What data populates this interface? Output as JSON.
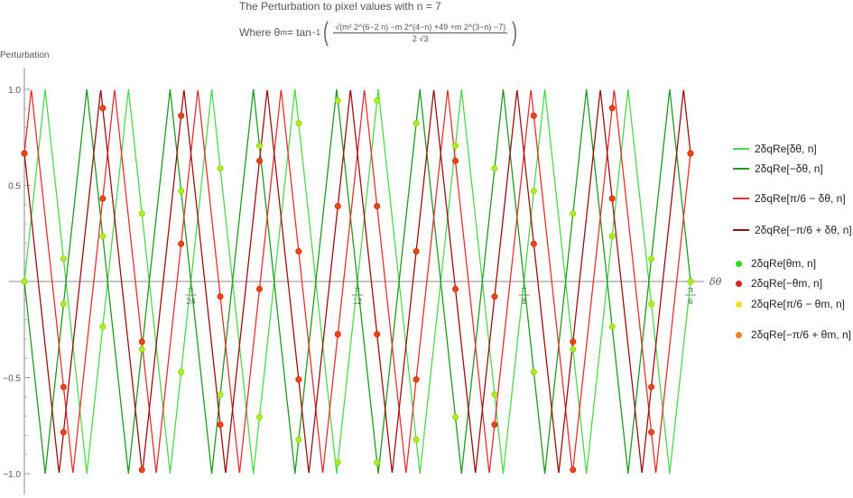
{
  "header": {
    "title": "The Perturbation to pixel values with n = 7",
    "formula_prefix": "Where θ",
    "formula_sub": "m",
    "formula_eq": " = tan",
    "formula_sup": "−1",
    "formula_numerator": "√(m² 2^(6−2 n) −m 2^(4−n) +49 +m 2^(3−n) −7)",
    "formula_denominator": "2 √3"
  },
  "chart_data": {
    "type": "line",
    "title": "The Perturbation to pixel values with n = 7",
    "xlabel": "δθ",
    "ylabel": "Perturbation",
    "xlim": [
      0,
      0.5236
    ],
    "ylim": [
      -1.0,
      1.0
    ],
    "yticks": [
      -1.0,
      -0.5,
      0.5,
      1.0
    ],
    "ytick_labels": [
      "−1.0",
      "−0.5",
      "0.5",
      "1.0"
    ],
    "xticks": [
      {
        "value": 0.1309,
        "num": "π",
        "den": "24"
      },
      {
        "value": 0.2618,
        "num": "π",
        "den": "12"
      },
      {
        "value": 0.3927,
        "num": "π",
        "den": "8"
      },
      {
        "value": 0.5236,
        "num": "π",
        "den": "6"
      }
    ],
    "n": 7,
    "grid": false,
    "legend_position": "right",
    "series": [
      {
        "name": "2δqRe[δθ, n]",
        "kind": "line",
        "color": "#4cd84c",
        "phase_deg": 0,
        "sign": 1
      },
      {
        "name": "2δqRe[−δθ, n]",
        "kind": "line",
        "color": "#1f9a1f",
        "phase_deg": 0,
        "sign": -1
      },
      {
        "name": "2δqRe[π/6 − δθ, n]",
        "kind": "line",
        "color": "#e23030",
        "phase_deg": 30,
        "sign": -1
      },
      {
        "name": "2δqRe[−π/6 + δθ, n]",
        "kind": "line",
        "color": "#9a1010",
        "phase_deg": -30,
        "sign": 1
      },
      {
        "name": "2δqRe[θm, n]",
        "kind": "points",
        "color": "#22dd22"
      },
      {
        "name": "2δqRe[−θm, n]",
        "kind": "points",
        "color": "#dd2222"
      },
      {
        "name": "2δqRe[π/6 − θm, n]",
        "kind": "points",
        "color": "#f2e020"
      },
      {
        "name": "2δqRe[−π/6 + θm, n]",
        "kind": "points",
        "color": "#f08020"
      }
    ],
    "marker_theta_count": 17
  },
  "legend": {
    "items": [
      {
        "pre": "2δqRe[δθ, n]",
        "color": "#4cd84c",
        "kind": "line"
      },
      {
        "pre": "2δqRe[−δθ, n]",
        "color": "#1f9a1f",
        "kind": "line"
      },
      {
        "pre": "2δqRe[π/6 − δθ, n]",
        "color": "#e23030",
        "kind": "line"
      },
      {
        "pre": "2δqRe[−π/6 + δθ, n]",
        "color": "#9a1010",
        "kind": "line"
      },
      {
        "pre": "2δqRe[θm, n]",
        "color": "#22dd22",
        "kind": "dot"
      },
      {
        "pre": "2δqRe[−θm, n]",
        "color": "#dd2222",
        "kind": "dot"
      },
      {
        "pre": "2δqRe[π/6 − θm, n]",
        "color": "#f2e020",
        "kind": "dot"
      },
      {
        "pre": "2δqRe[−π/6 + θm, n]",
        "color": "#f08020",
        "kind": "dot"
      }
    ]
  }
}
